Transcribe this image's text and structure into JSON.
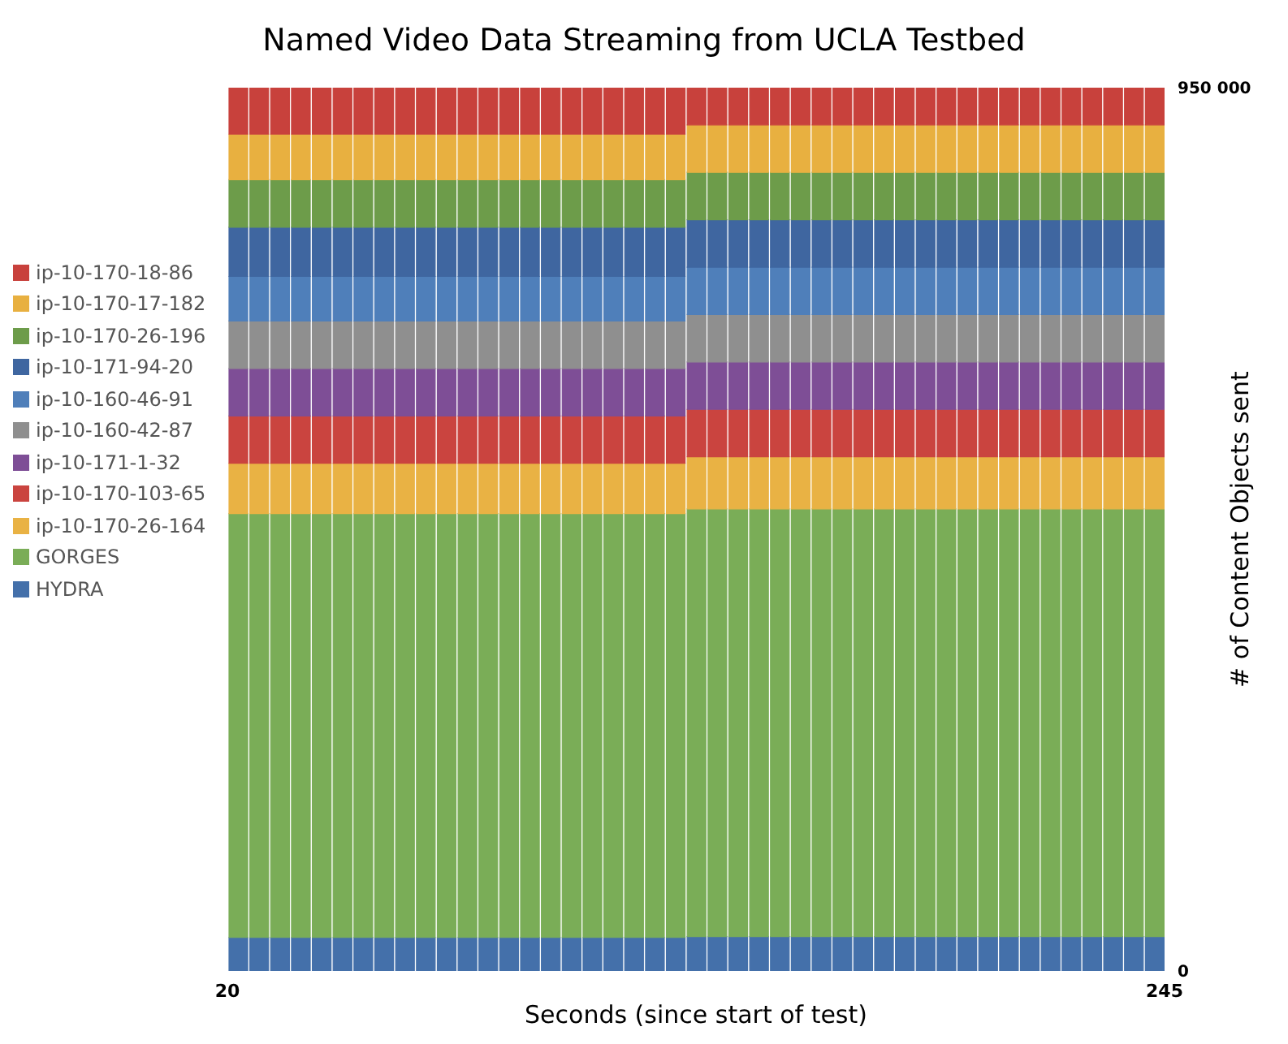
{
  "chart_data": {
    "type": "bar",
    "stacked": true,
    "title": "Named Video Data Streaming from UCLA Testbed",
    "xlabel": "Seconds (since start of test)",
    "ylabel": "# of Content Objects sent",
    "x": [
      22.5,
      27.5,
      32.5,
      37.5,
      42.5,
      47.5,
      52.5,
      57.5,
      62.5,
      67.5,
      72.5,
      77.5,
      82.5,
      87.5,
      92.5,
      97.5,
      102.5,
      107.5,
      112.5,
      117.5,
      122.5,
      127.5,
      132.5,
      137.5,
      142.5,
      147.5,
      152.5,
      157.5,
      162.5,
      167.5,
      172.5,
      177.5,
      182.5,
      187.5,
      192.5,
      197.5,
      202.5,
      207.5,
      212.5,
      217.5,
      222.5,
      227.5,
      232.5,
      237.5,
      242.5
    ],
    "xlim": [
      20,
      245
    ],
    "xticks": [
      20,
      245
    ],
    "ylim": [
      0,
      950000
    ],
    "yticks": [
      0,
      {
        "value": 950000,
        "label": "950 000"
      }
    ],
    "legend": "left",
    "grid": false,
    "series": [
      {
        "name": "HYDRA",
        "color": "#4470aa",
        "values": [
          36000,
          36000,
          36000,
          36000,
          36000,
          36000,
          36000,
          36000,
          36000,
          36000,
          36000,
          36000,
          36000,
          36000,
          36000,
          36000,
          36000,
          36000,
          36000,
          36000,
          36000,
          36000,
          37000,
          37000,
          37000,
          37000,
          37000,
          37000,
          37000,
          37000,
          37000,
          37000,
          37000,
          37000,
          37000,
          37000,
          37000,
          37000,
          37000,
          37000,
          37000,
          37000,
          37000,
          37000,
          37000
        ]
      },
      {
        "name": "GORGES",
        "color": "#7aad57",
        "values": [
          456000,
          456000,
          456000,
          456000,
          456000,
          456000,
          456000,
          456000,
          456000,
          456000,
          456000,
          456000,
          456000,
          456000,
          456000,
          456000,
          456000,
          456000,
          456000,
          456000,
          456000,
          456000,
          460000,
          460000,
          460000,
          460000,
          460000,
          460000,
          460000,
          460000,
          460000,
          460000,
          460000,
          460000,
          460000,
          460000,
          460000,
          460000,
          460000,
          460000,
          460000,
          460000,
          460000,
          460000,
          460000
        ]
      },
      {
        "name": "ip-10-170-26-164",
        "color": "#e9b244",
        "values": [
          54000,
          54000,
          54000,
          54000,
          54000,
          54000,
          54000,
          54000,
          54000,
          54000,
          54000,
          54000,
          54000,
          54000,
          54000,
          54000,
          54000,
          54000,
          54000,
          54000,
          54000,
          54000,
          56000,
          56000,
          56000,
          56000,
          56000,
          56000,
          56000,
          56000,
          56000,
          56000,
          56000,
          56000,
          56000,
          56000,
          56000,
          56000,
          56000,
          56000,
          56000,
          56000,
          56000,
          56000,
          56000
        ]
      },
      {
        "name": "ip-10-170-103-65",
        "color": "#ca443f",
        "values": [
          51000,
          51000,
          51000,
          51000,
          51000,
          51000,
          51000,
          51000,
          51000,
          51000,
          51000,
          51000,
          51000,
          51000,
          51000,
          51000,
          51000,
          51000,
          51000,
          51000,
          51000,
          51000,
          51000,
          51000,
          51000,
          51000,
          51000,
          51000,
          51000,
          51000,
          51000,
          51000,
          51000,
          51000,
          51000,
          51000,
          51000,
          51000,
          51000,
          51000,
          51000,
          51000,
          51000,
          51000,
          51000
        ]
      },
      {
        "name": "ip-10-171-1-32",
        "color": "#7e4e96",
        "values": [
          51000,
          51000,
          51000,
          51000,
          51000,
          51000,
          51000,
          51000,
          51000,
          51000,
          51000,
          51000,
          51000,
          51000,
          51000,
          51000,
          51000,
          51000,
          51000,
          51000,
          51000,
          51000,
          51000,
          51000,
          51000,
          51000,
          51000,
          51000,
          51000,
          51000,
          51000,
          51000,
          51000,
          51000,
          51000,
          51000,
          51000,
          51000,
          51000,
          51000,
          51000,
          51000,
          51000,
          51000,
          51000
        ]
      },
      {
        "name": "ip-10-160-42-87",
        "color": "#8f8f8f",
        "values": [
          51000,
          51000,
          51000,
          51000,
          51000,
          51000,
          51000,
          51000,
          51000,
          51000,
          51000,
          51000,
          51000,
          51000,
          51000,
          51000,
          51000,
          51000,
          51000,
          51000,
          51000,
          51000,
          51000,
          51000,
          51000,
          51000,
          51000,
          51000,
          51000,
          51000,
          51000,
          51000,
          51000,
          51000,
          51000,
          51000,
          51000,
          51000,
          51000,
          51000,
          51000,
          51000,
          51000,
          51000,
          51000
        ]
      },
      {
        "name": "ip-10-160-46-91",
        "color": "#4f7fba",
        "values": [
          48000,
          48000,
          48000,
          48000,
          48000,
          48000,
          48000,
          48000,
          48000,
          48000,
          48000,
          48000,
          48000,
          48000,
          48000,
          48000,
          48000,
          48000,
          48000,
          48000,
          48000,
          48000,
          51000,
          51000,
          51000,
          51000,
          51000,
          51000,
          51000,
          51000,
          51000,
          51000,
          51000,
          51000,
          51000,
          51000,
          51000,
          51000,
          51000,
          51000,
          51000,
          51000,
          51000,
          51000,
          51000
        ]
      },
      {
        "name": "ip-10-171-94-20",
        "color": "#3f66a0",
        "values": [
          53000,
          53000,
          53000,
          53000,
          53000,
          53000,
          53000,
          53000,
          53000,
          53000,
          53000,
          53000,
          53000,
          53000,
          53000,
          53000,
          53000,
          53000,
          53000,
          53000,
          53000,
          53000,
          51000,
          51000,
          51000,
          51000,
          51000,
          51000,
          51000,
          51000,
          51000,
          51000,
          51000,
          51000,
          51000,
          51000,
          51000,
          51000,
          51000,
          51000,
          51000,
          51000,
          51000,
          51000,
          51000
        ]
      },
      {
        "name": "ip-10-170-26-196",
        "color": "#6d9c4a",
        "values": [
          51000,
          51000,
          51000,
          51000,
          51000,
          51000,
          51000,
          51000,
          51000,
          51000,
          51000,
          51000,
          51000,
          51000,
          51000,
          51000,
          51000,
          51000,
          51000,
          51000,
          51000,
          51000,
          51000,
          51000,
          51000,
          51000,
          51000,
          51000,
          51000,
          51000,
          51000,
          51000,
          51000,
          51000,
          51000,
          51000,
          51000,
          51000,
          51000,
          51000,
          51000,
          51000,
          51000,
          51000,
          51000
        ]
      },
      {
        "name": "ip-10-170-17-182",
        "color": "#e8b040",
        "values": [
          49000,
          49000,
          49000,
          49000,
          49000,
          49000,
          49000,
          49000,
          49000,
          49000,
          49000,
          49000,
          49000,
          49000,
          49000,
          49000,
          49000,
          49000,
          49000,
          49000,
          49000,
          49000,
          51000,
          51000,
          51000,
          51000,
          51000,
          51000,
          51000,
          51000,
          51000,
          51000,
          51000,
          51000,
          51000,
          51000,
          51000,
          51000,
          51000,
          51000,
          51000,
          51000,
          51000,
          51000,
          51000
        ]
      },
      {
        "name": "ip-10-170-18-86",
        "color": "#c8413c",
        "values": [
          50000,
          50000,
          50000,
          50000,
          50000,
          50000,
          50000,
          50000,
          50000,
          50000,
          50000,
          50000,
          50000,
          50000,
          50000,
          50000,
          50000,
          50000,
          50000,
          50000,
          50000,
          50000,
          40000,
          40000,
          40000,
          40000,
          40000,
          40000,
          40000,
          40000,
          40000,
          40000,
          40000,
          40000,
          40000,
          40000,
          40000,
          40000,
          40000,
          40000,
          40000,
          40000,
          40000,
          40000,
          40000
        ]
      }
    ]
  }
}
